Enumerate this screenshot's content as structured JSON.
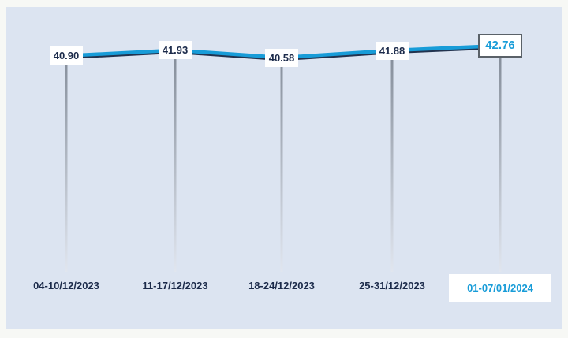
{
  "chart_data": {
    "type": "line",
    "categories": [
      "04-10/12/2023",
      "11-17/12/2023",
      "18-24/12/2023",
      "25-31/12/2023",
      "01-07/01/2024"
    ],
    "values": [
      40.9,
      41.93,
      40.58,
      41.88,
      42.76
    ],
    "value_labels": [
      "40.90",
      "41.93",
      "40.58",
      "41.88",
      "42.76"
    ],
    "highlighted_index": 4,
    "title": "",
    "xlabel": "",
    "ylabel": "",
    "legend_visible": false,
    "grid": false,
    "axis_visible": false,
    "notes": "Nearly flat line chart; each point has a white value label box centered on it, a gray stem dropping to the x-axis category, and the latest point (42.76 / 01-07/01/2024) is highlighted in blue with a bordered box."
  },
  "colors": {
    "page_background": "#f7f8f5",
    "panel_background": "#dce4f1",
    "line_blue": "#189cd8",
    "line_shadow": "#22334f",
    "stem_top": "#7e8794",
    "stem_bottom": "#e2e7f0",
    "label_text": "#1b2a4a",
    "highlight_text": "#189cd8",
    "label_box_background": "#ffffff",
    "highlight_box_border": "#5a6168"
  }
}
